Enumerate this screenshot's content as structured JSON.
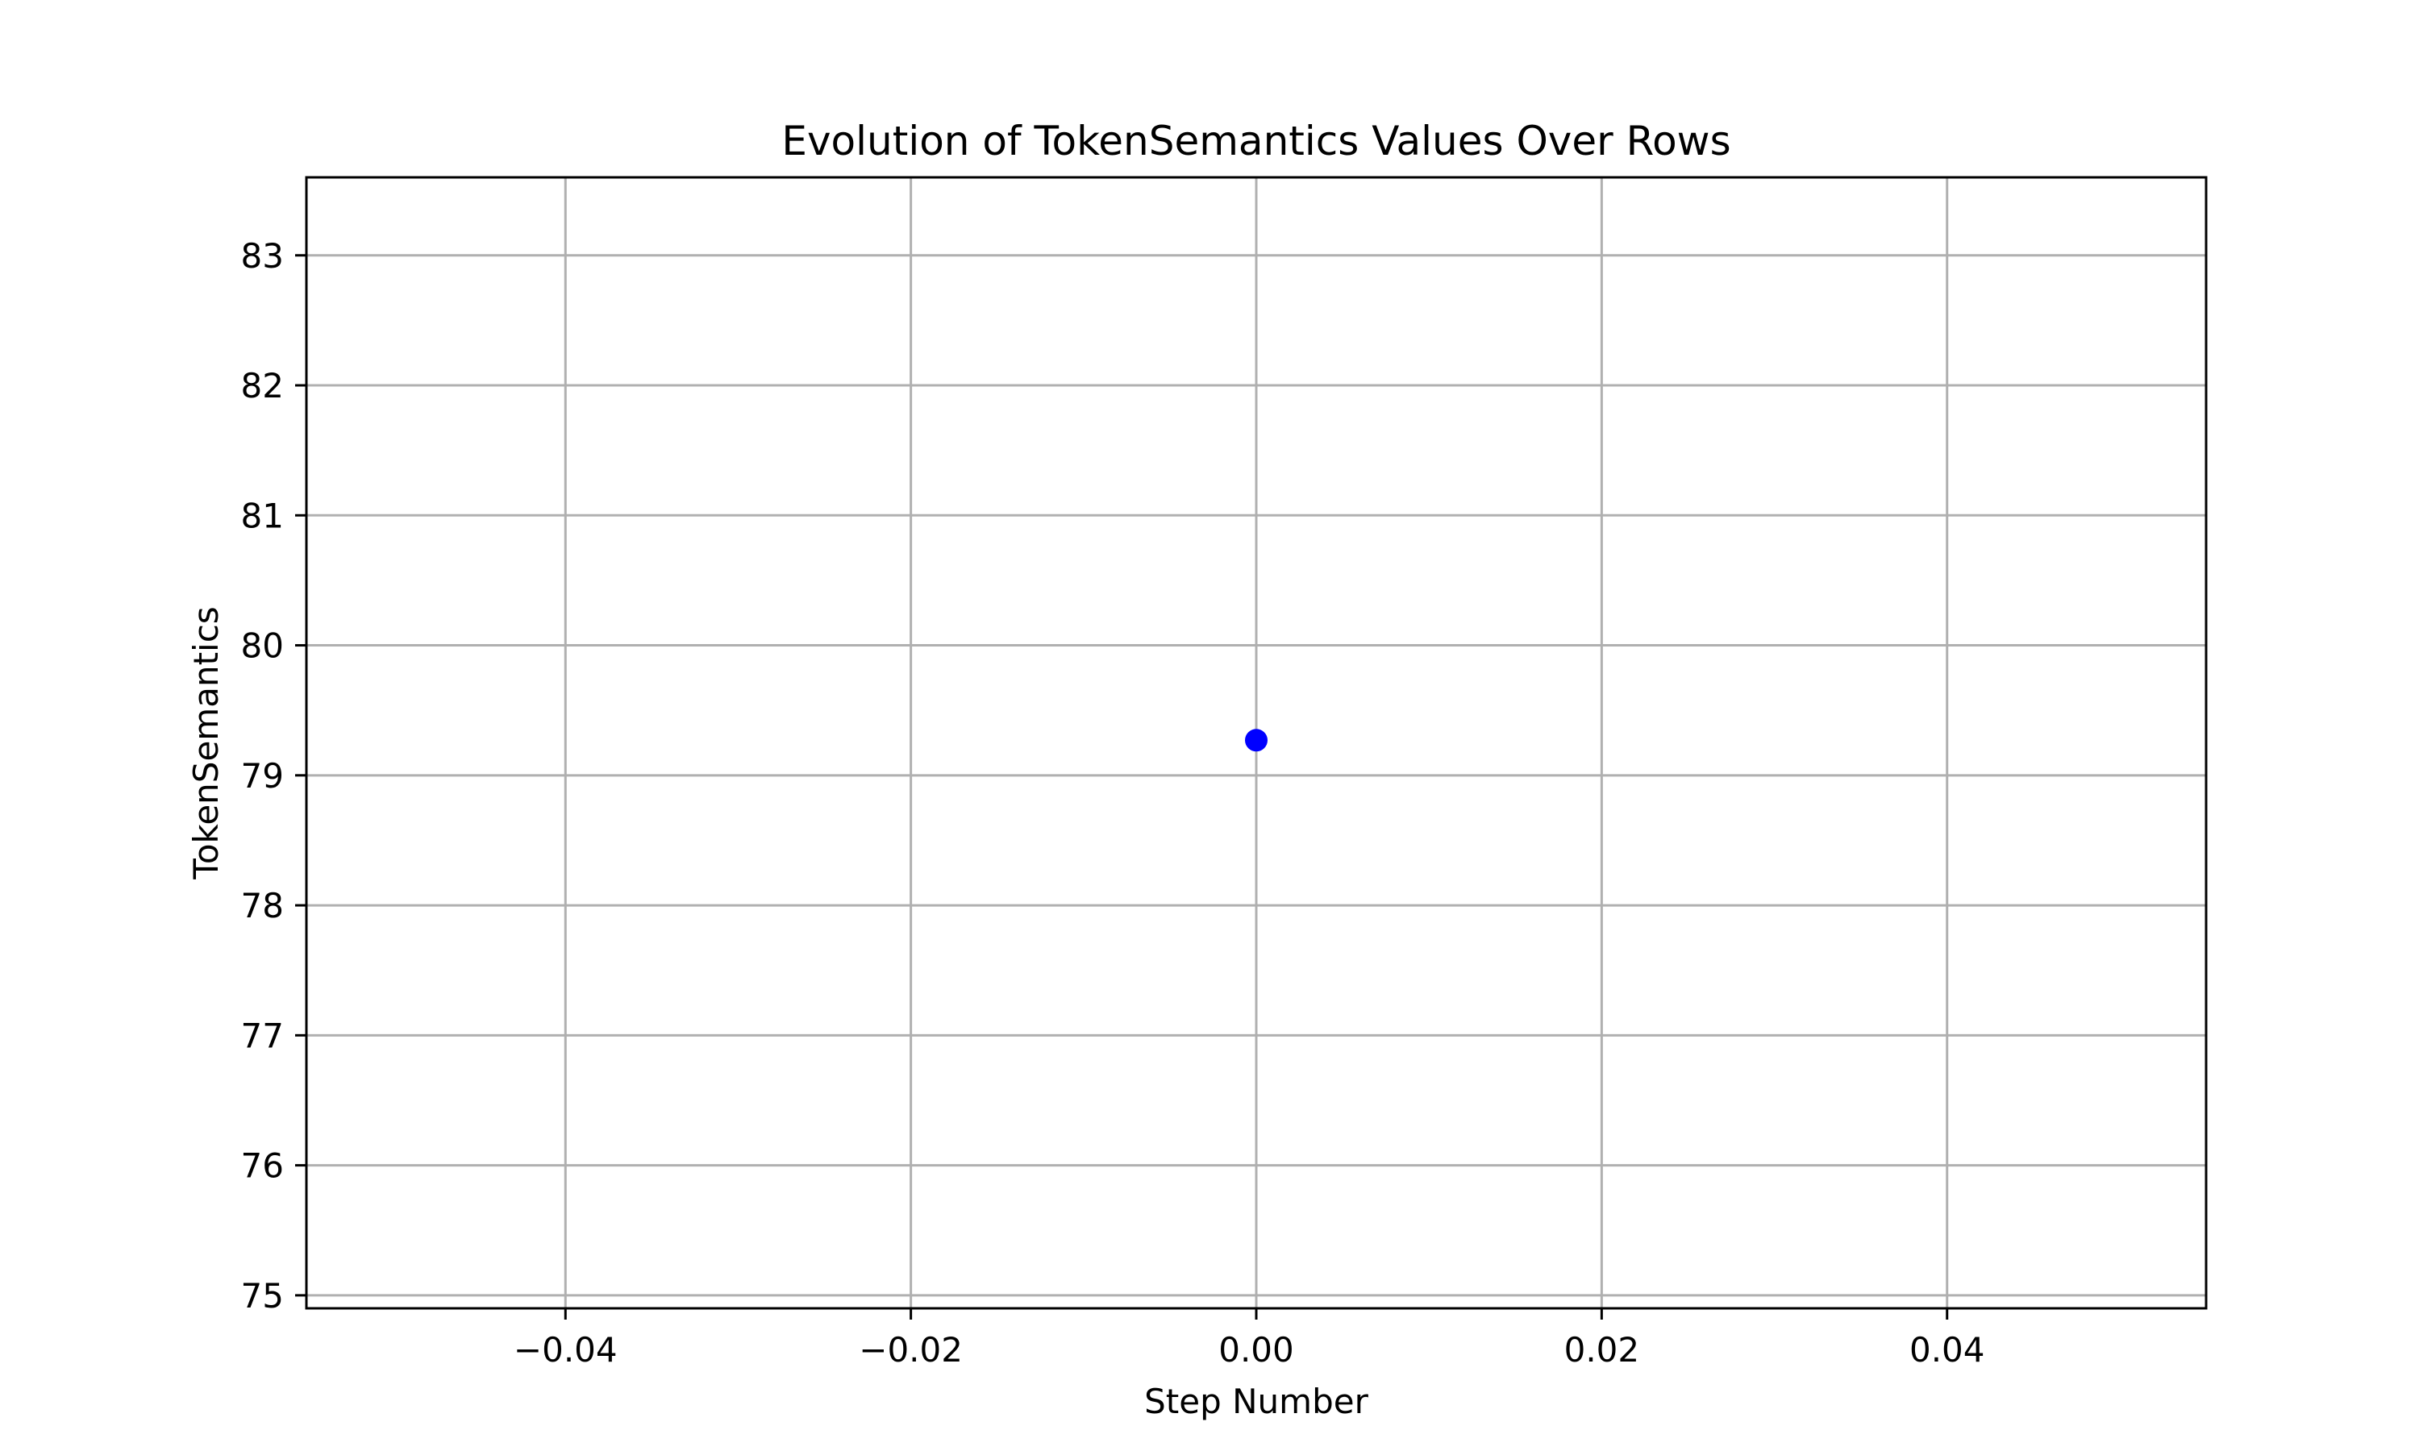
{
  "chart_data": {
    "type": "scatter",
    "title": "Evolution of TokenSemantics Values Over Rows",
    "xlabel": "Step Number",
    "ylabel": "TokenSemantics",
    "xlim": [
      -0.055,
      0.055
    ],
    "ylim": [
      74.9,
      83.6
    ],
    "x_ticks": [
      -0.04,
      -0.02,
      0.0,
      0.02,
      0.04
    ],
    "x_tick_labels": [
      "−0.04",
      "−0.02",
      "0.00",
      "0.02",
      "0.04"
    ],
    "y_ticks": [
      75,
      76,
      77,
      78,
      79,
      80,
      81,
      82,
      83
    ],
    "y_tick_labels": [
      "75",
      "76",
      "77",
      "78",
      "79",
      "80",
      "81",
      "82",
      "83"
    ],
    "grid": true,
    "legend": "none",
    "series": [
      {
        "color": "#0000ff",
        "points": [
          {
            "x": 0.0,
            "y": 79.27
          }
        ]
      }
    ],
    "colors": {
      "marker": "#0000ff",
      "grid": "#b0b0b0",
      "axes": "#000000"
    }
  }
}
